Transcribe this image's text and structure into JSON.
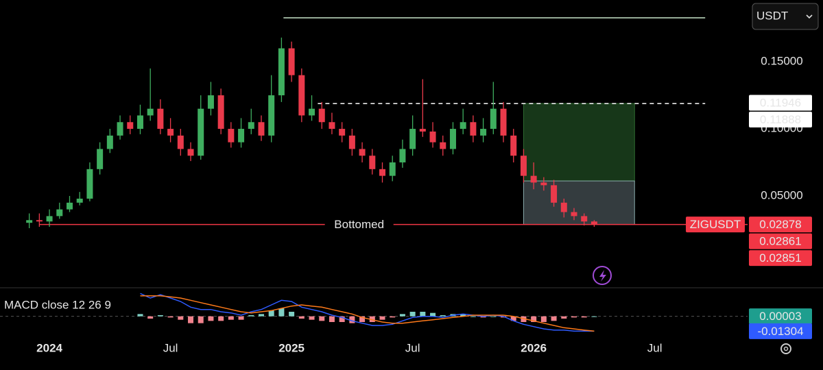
{
  "header": {
    "currency": "USDT"
  },
  "chart_data": {
    "type": "candlestick",
    "symbol": "ZIGUSDT",
    "x": [
      -1.0,
      -0.5,
      0,
      0.5,
      1.0,
      1.5,
      2.0,
      2.5,
      3.0,
      3.5,
      4.0,
      4.5,
      5.0,
      5.5,
      6.0,
      6.5,
      7.0,
      7.5,
      8.0,
      8.5,
      9.0,
      9.5,
      10.0,
      10.5,
      11.0,
      11.5,
      12.0,
      12.5,
      13.0,
      13.5,
      14.0,
      14.5,
      15.0,
      15.5,
      16.0,
      16.5,
      17.0,
      17.5,
      18.0,
      18.5,
      19.0,
      19.5,
      20.0,
      20.5,
      21.0,
      21.5,
      22.0,
      22.5,
      23.0,
      23.5,
      24.0,
      24.5,
      25.0,
      25.5,
      26.0,
      26.5,
      27.0
    ],
    "open": [
      0.03,
      0.032,
      0.031,
      0.035,
      0.04,
      0.045,
      0.048,
      0.07,
      0.085,
      0.095,
      0.105,
      0.1,
      0.11,
      0.115,
      0.1,
      0.095,
      0.085,
      0.08,
      0.115,
      0.125,
      0.1,
      0.09,
      0.1,
      0.105,
      0.095,
      0.125,
      0.16,
      0.14,
      0.11,
      0.115,
      0.105,
      0.1,
      0.095,
      0.085,
      0.08,
      0.07,
      0.065,
      0.075,
      0.085,
      0.1,
      0.098,
      0.09,
      0.085,
      0.1,
      0.105,
      0.095,
      0.1,
      0.115,
      0.095,
      0.08,
      0.065,
      0.06,
      0.058,
      0.045,
      0.038,
      0.035,
      0.031
    ],
    "high": [
      0.037,
      0.037,
      0.04,
      0.045,
      0.05,
      0.053,
      0.075,
      0.09,
      0.1,
      0.11,
      0.11,
      0.118,
      0.145,
      0.122,
      0.108,
      0.1,
      0.09,
      0.125,
      0.135,
      0.13,
      0.105,
      0.108,
      0.115,
      0.11,
      0.14,
      0.168,
      0.165,
      0.145,
      0.125,
      0.12,
      0.112,
      0.105,
      0.1,
      0.09,
      0.085,
      0.075,
      0.08,
      0.092,
      0.11,
      0.137,
      0.105,
      0.095,
      0.105,
      0.115,
      0.11,
      0.108,
      0.135,
      0.12,
      0.1,
      0.085,
      0.075,
      0.064,
      0.062,
      0.048,
      0.041,
      0.037,
      0.032
    ],
    "low": [
      0.026,
      0.027,
      0.027,
      0.033,
      0.038,
      0.043,
      0.046,
      0.066,
      0.082,
      0.092,
      0.096,
      0.096,
      0.106,
      0.096,
      0.09,
      0.08,
      0.076,
      0.077,
      0.11,
      0.096,
      0.086,
      0.086,
      0.096,
      0.091,
      0.09,
      0.12,
      0.135,
      0.105,
      0.106,
      0.1,
      0.096,
      0.09,
      0.08,
      0.075,
      0.066,
      0.06,
      0.061,
      0.071,
      0.08,
      0.094,
      0.086,
      0.08,
      0.081,
      0.096,
      0.09,
      0.09,
      0.096,
      0.09,
      0.075,
      0.06,
      0.055,
      0.054,
      0.042,
      0.034,
      0.032,
      0.028,
      0.027
    ],
    "close": [
      0.032,
      0.031,
      0.035,
      0.04,
      0.045,
      0.048,
      0.07,
      0.085,
      0.095,
      0.105,
      0.1,
      0.11,
      0.115,
      0.1,
      0.095,
      0.085,
      0.08,
      0.115,
      0.125,
      0.1,
      0.09,
      0.1,
      0.105,
      0.095,
      0.125,
      0.16,
      0.14,
      0.11,
      0.115,
      0.105,
      0.1,
      0.095,
      0.085,
      0.08,
      0.07,
      0.065,
      0.075,
      0.085,
      0.1,
      0.098,
      0.09,
      0.085,
      0.1,
      0.105,
      0.095,
      0.1,
      0.115,
      0.095,
      0.08,
      0.065,
      0.06,
      0.058,
      0.045,
      0.038,
      0.035,
      0.031,
      0.029
    ],
    "up_color": "#3fae5f",
    "down_color": "#ea3a4b",
    "xlim": [
      -2.45,
      34.6
    ],
    "ylim": [
      -0.0184,
      0.196
    ],
    "yticks": [
      {
        "value": 0.15,
        "label": "0.15000"
      },
      {
        "value": 0.1,
        "label": "0.10000"
      },
      {
        "value": 0.05,
        "label": "0.05000"
      }
    ],
    "xticks": [
      {
        "value": 0,
        "label": "2024"
      },
      {
        "value": 6,
        "label": "Jul"
      },
      {
        "value": 12,
        "label": "2025"
      },
      {
        "value": 18,
        "label": "Jul"
      },
      {
        "value": 24,
        "label": "2026"
      },
      {
        "value": 30,
        "label": "Jul"
      }
    ],
    "price_tags": [
      0.11946,
      0.11888,
      0.02878,
      0.02861,
      0.02851
    ],
    "lines": [
      {
        "y": 0.1827,
        "x": [
          11.6,
          32.5
        ],
        "color": "#c8e6c9",
        "style": "solid"
      },
      {
        "y": 0.11888,
        "x": [
          13.3,
          32.5
        ],
        "color": "#ffffff",
        "style": "dashed"
      },
      {
        "y": 0.02878,
        "x": [
          -0.5,
          34.6
        ],
        "color": "#f23645",
        "style": "solid",
        "label": "Bottomed"
      }
    ],
    "position": {
      "x": [
        23.5,
        29.0
      ],
      "entry": 0.0612,
      "target": 0.11888,
      "stop": 0.02878
    },
    "macd": {
      "label": "MACD close 12 26 9",
      "ylim": [
        -0.02,
        0.025
      ],
      "macd_color": "#2f5bff",
      "signal_color": "#ff7a1a",
      "tags": [
        3e-05,
        -0.01304
      ],
      "macd": [
        null,
        null,
        null,
        null,
        null,
        null,
        null,
        null,
        null,
        null,
        null,
        0.02,
        0.016,
        0.019,
        0.016,
        0.013,
        0.008,
        0.006,
        0.006,
        0.004,
        0.003,
        0.001,
        0.004,
        0.006,
        0.01,
        0.014,
        0.013,
        0.008,
        0.006,
        0.004,
        0.001,
        -0.001,
        -0.004,
        -0.006,
        -0.008,
        -0.008,
        -0.007,
        -0.004,
        -0.001,
        0,
        0,
        -0.001,
        0.001,
        0.002,
        0.001,
        0,
        0.001,
        0,
        -0.004,
        -0.007,
        -0.009,
        -0.011,
        -0.012,
        -0.012,
        -0.013,
        -0.013,
        -0.013
      ],
      "signal": [
        null,
        null,
        null,
        null,
        null,
        null,
        null,
        null,
        null,
        null,
        null,
        0.018,
        0.018,
        0.018,
        0.017,
        0.016,
        0.014,
        0.012,
        0.01,
        0.008,
        0.006,
        0.004,
        0.003,
        0.004,
        0.005,
        0.007,
        0.009,
        0.01,
        0.009,
        0.008,
        0.006,
        0.004,
        0.002,
        -0.001,
        -0.003,
        -0.005,
        -0.006,
        -0.006,
        -0.005,
        -0.004,
        -0.003,
        -0.002,
        -0.001,
        0,
        0.001,
        0.001,
        0.001,
        0.001,
        0,
        -0.002,
        -0.004,
        -0.006,
        -0.008,
        -0.01,
        -0.011,
        -0.012,
        -0.013
      ],
      "histogram": [
        null,
        null,
        null,
        null,
        null,
        null,
        null,
        null,
        null,
        null,
        null,
        0.002,
        -0.002,
        0.001,
        -0.001,
        -0.003,
        -0.006,
        -0.006,
        -0.004,
        -0.004,
        -0.003,
        -0.003,
        0.001,
        0.002,
        0.005,
        0.007,
        0.004,
        -0.002,
        -0.003,
        -0.004,
        -0.005,
        -0.005,
        -0.006,
        -0.005,
        -0.005,
        -0.003,
        -0.001,
        0.002,
        0.004,
        0.004,
        0.003,
        0.001,
        0.002,
        0.002,
        0,
        -0.001,
        0,
        -0.001,
        -0.004,
        -0.005,
        -0.005,
        -0.005,
        -0.004,
        -0.002,
        -0.001,
        -0.001,
        0
      ]
    }
  }
}
